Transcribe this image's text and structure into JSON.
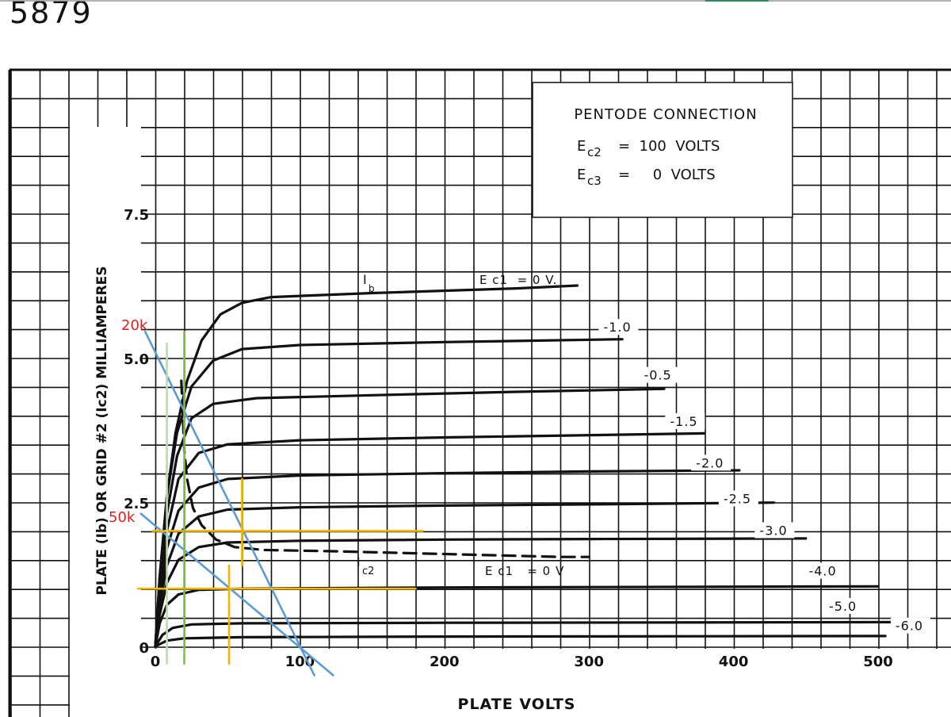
{
  "page": {
    "tube_number": "5879"
  },
  "legend_box": {
    "heading": "PENTODE CONNECTION",
    "lines": [
      {
        "symbol": "E",
        "subscript": "c2",
        "rest": "=  100  VOLTS"
      },
      {
        "symbol": "E",
        "subscript": "c3",
        "rest": "=     0  VOLTS"
      }
    ]
  },
  "annotations": {
    "ib_label": {
      "symbol": "I",
      "subscript": "b"
    },
    "ic2_label": {
      "symbol": "I",
      "subscript": "c2"
    },
    "ec1_zero_top": "E c1  = 0 V.",
    "ec1_zero_bottom": "E c1   = 0 V",
    "load_20k": "20k",
    "load_50k": "50k"
  },
  "chart_data": {
    "type": "line",
    "title": "",
    "xlabel": "PLATE VOLTS",
    "ylabel": "PLATE (Ib) OR GRID #2 (Ic2) MILLIAMPERES",
    "xlim": [
      0,
      530
    ],
    "ylim": [
      0,
      10.5
    ],
    "grid": true,
    "x_ticks": [
      {
        "value": 0,
        "label": "0"
      },
      {
        "value": 100,
        "label": "100"
      },
      {
        "value": 200,
        "label": "200"
      },
      {
        "value": 300,
        "label": "300"
      },
      {
        "value": 400,
        "label": "400"
      },
      {
        "value": 500,
        "label": "500"
      }
    ],
    "y_ticks": [
      {
        "value": 0,
        "label": "0"
      },
      {
        "value": 2.5,
        "label": "2.5"
      },
      {
        "value": 5.0,
        "label": "5.0"
      },
      {
        "value": 7.5,
        "label": "7.5"
      }
    ],
    "series": [
      {
        "name": "",
        "label": "",
        "style": "solid",
        "color": "#111111",
        "points": [
          [
            0,
            0
          ],
          [
            3,
            1.2
          ],
          [
            8,
            2.6
          ],
          [
            14,
            3.7
          ],
          [
            22,
            4.6
          ],
          [
            32,
            5.3
          ],
          [
            45,
            5.75
          ],
          [
            60,
            5.95
          ],
          [
            80,
            6.05
          ],
          [
            150,
            6.12
          ],
          [
            250,
            6.2
          ],
          [
            292,
            6.25
          ]
        ]
      },
      {
        "name": "",
        "label": "-1.0",
        "label_at": [
          310,
          5.45
        ],
        "style": "solid",
        "color": "#111111",
        "points": [
          [
            0,
            0
          ],
          [
            3,
            1.2
          ],
          [
            8,
            2.6
          ],
          [
            15,
            3.7
          ],
          [
            25,
            4.5
          ],
          [
            40,
            4.95
          ],
          [
            60,
            5.15
          ],
          [
            100,
            5.22
          ],
          [
            200,
            5.27
          ],
          [
            323,
            5.32
          ]
        ]
      },
      {
        "name": "",
        "label": "-0.5",
        "label_at": [
          338,
          4.62
        ],
        "style": "solid",
        "color": "#111111",
        "points": [
          [
            0,
            0
          ],
          [
            3,
            1.1
          ],
          [
            8,
            2.3
          ],
          [
            15,
            3.3
          ],
          [
            25,
            3.95
          ],
          [
            40,
            4.2
          ],
          [
            70,
            4.3
          ],
          [
            150,
            4.35
          ],
          [
            250,
            4.41
          ],
          [
            352,
            4.46
          ]
        ]
      },
      {
        "name": "",
        "label": "-1.5",
        "label_at": [
          356,
          3.82
        ],
        "style": "solid",
        "color": "#111111",
        "points": [
          [
            0,
            0
          ],
          [
            3,
            1.0
          ],
          [
            8,
            2.0
          ],
          [
            16,
            2.9
          ],
          [
            30,
            3.35
          ],
          [
            50,
            3.5
          ],
          [
            100,
            3.57
          ],
          [
            200,
            3.62
          ],
          [
            380,
            3.69
          ]
        ]
      },
      {
        "name": "",
        "label": "-2.0",
        "label_at": [
          374,
          3.1
        ],
        "style": "solid",
        "color": "#111111",
        "points": [
          [
            0,
            0
          ],
          [
            3,
            0.85
          ],
          [
            8,
            1.7
          ],
          [
            16,
            2.35
          ],
          [
            30,
            2.75
          ],
          [
            50,
            2.9
          ],
          [
            100,
            2.96
          ],
          [
            200,
            3.0
          ],
          [
            300,
            3.03
          ],
          [
            404,
            3.05
          ]
        ]
      },
      {
        "name": "",
        "label": "-2.5",
        "label_at": [
          393,
          2.48
        ],
        "style": "solid",
        "color": "#111111",
        "points": [
          [
            0,
            0
          ],
          [
            3,
            0.7
          ],
          [
            8,
            1.4
          ],
          [
            16,
            1.95
          ],
          [
            30,
            2.25
          ],
          [
            50,
            2.37
          ],
          [
            100,
            2.41
          ],
          [
            200,
            2.44
          ],
          [
            300,
            2.46
          ],
          [
            428,
            2.49
          ]
        ]
      },
      {
        "name": "",
        "label": "-3.0",
        "label_at": [
          418,
          1.93
        ],
        "style": "solid",
        "color": "#111111",
        "points": [
          [
            0,
            0
          ],
          [
            3,
            0.55
          ],
          [
            8,
            1.1
          ],
          [
            16,
            1.5
          ],
          [
            30,
            1.72
          ],
          [
            50,
            1.8
          ],
          [
            100,
            1.83
          ],
          [
            200,
            1.85
          ],
          [
            300,
            1.86
          ],
          [
            450,
            1.87
          ]
        ]
      },
      {
        "name": "",
        "label": "-4.0",
        "label_at": [
          452,
          1.23
        ],
        "style": "solid",
        "color": "#111111",
        "points": [
          [
            0,
            0
          ],
          [
            3,
            0.4
          ],
          [
            8,
            0.72
          ],
          [
            16,
            0.9
          ],
          [
            30,
            0.98
          ],
          [
            60,
            1.0
          ],
          [
            200,
            1.02
          ],
          [
            500,
            1.04
          ]
        ]
      },
      {
        "name": "",
        "label": "-5.0",
        "label_at": [
          466,
          0.62
        ],
        "style": "solid",
        "color": "#111111",
        "points": [
          [
            0,
            0
          ],
          [
            5,
            0.2
          ],
          [
            12,
            0.32
          ],
          [
            25,
            0.38
          ],
          [
            60,
            0.4
          ],
          [
            200,
            0.41
          ],
          [
            510,
            0.42
          ]
        ]
      },
      {
        "name": "",
        "label": "-6.0",
        "label_at": [
          512,
          0.28
        ],
        "style": "solid",
        "color": "#111111",
        "points": [
          [
            0,
            0
          ],
          [
            8,
            0.1
          ],
          [
            20,
            0.14
          ],
          [
            60,
            0.16
          ],
          [
            200,
            0.17
          ],
          [
            505,
            0.18
          ]
        ]
      },
      {
        "name": "",
        "label": "",
        "style": "dashed",
        "color": "#111111",
        "points": [
          [
            18,
            4.6
          ],
          [
            20,
            3.4
          ],
          [
            22,
            2.9
          ],
          [
            26,
            2.4
          ],
          [
            32,
            2.1
          ],
          [
            42,
            1.85
          ],
          [
            55,
            1.72
          ],
          [
            75,
            1.67
          ],
          [
            120,
            1.65
          ],
          [
            200,
            1.6
          ],
          [
            280,
            1.55
          ],
          [
            300,
            1.55
          ]
        ]
      },
      {
        "name": "20k",
        "label": "",
        "style": "solid",
        "color": "#5a9bd5",
        "points": [
          [
            -7,
            5.45
          ],
          [
            110,
            -0.5
          ]
        ]
      },
      {
        "name": "50k",
        "label": "",
        "style": "solid",
        "color": "#5a9bd5",
        "points": [
          [
            -10,
            2.3
          ],
          [
            123,
            -0.5
          ]
        ]
      },
      {
        "name": "",
        "label": "",
        "style": "solid",
        "color": "#f5b400",
        "points": [
          [
            -2,
            2.0
          ],
          [
            185,
            2.0
          ]
        ]
      },
      {
        "name": "",
        "label": "",
        "style": "solid",
        "color": "#f5b400",
        "points": [
          [
            -12,
            1.0
          ],
          [
            180,
            1.0
          ]
        ]
      },
      {
        "name": "",
        "label": "",
        "style": "solid",
        "color": "#f5b400",
        "points": [
          [
            60,
            2.9
          ],
          [
            60,
            1.4
          ]
        ]
      },
      {
        "name": "",
        "label": "",
        "style": "solid",
        "color": "#f5b400",
        "points": [
          [
            51,
            1.4
          ],
          [
            51,
            -0.3
          ]
        ]
      },
      {
        "name": "",
        "label": "",
        "style": "solid",
        "color": "#7bc24a",
        "points": [
          [
            20,
            5.45
          ],
          [
            20,
            -0.3
          ]
        ]
      },
      {
        "name": "",
        "label": "",
        "style": "solid",
        "color": "#b8e0a0",
        "points": [
          [
            8,
            5.25
          ],
          [
            8,
            -0.3
          ]
        ]
      }
    ]
  }
}
